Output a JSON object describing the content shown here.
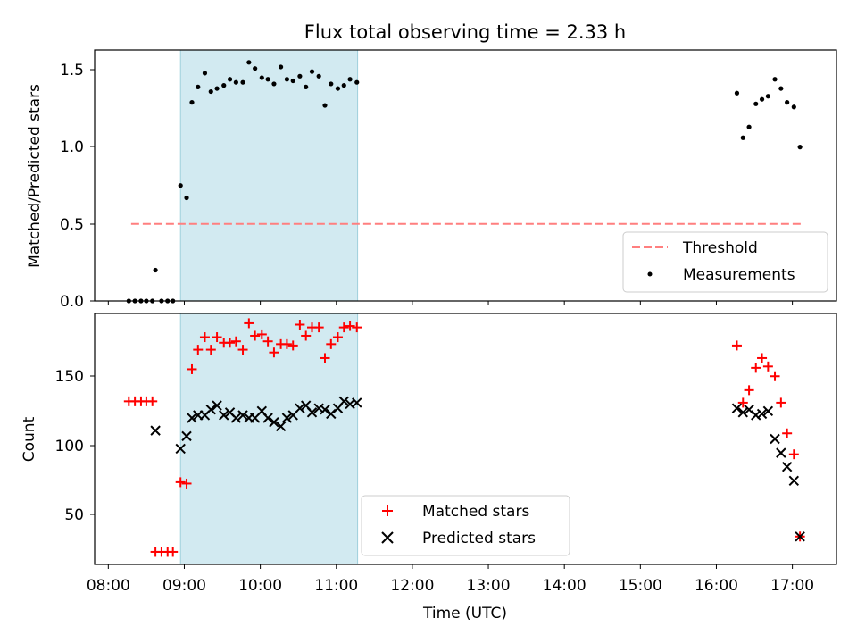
{
  "title": "Flux total observing time = 2.33 h",
  "xlabel": "Time (UTC)",
  "x_tick_labels": [
    "08:00",
    "09:00",
    "10:00",
    "11:00",
    "12:00",
    "13:00",
    "14:00",
    "15:00",
    "16:00",
    "17:00"
  ],
  "top": {
    "ylabel": "Matched/Predicted stars",
    "y_tick_labels": [
      "0.0",
      "0.5",
      "1.0",
      "1.5"
    ],
    "legend": {
      "threshold_label": "Threshold",
      "measurements_label": "Measurements"
    }
  },
  "bottom": {
    "ylabel": "Count",
    "y_tick_labels": [
      "50",
      "100",
      "150"
    ],
    "legend": {
      "matched_label": "Matched stars",
      "predicted_label": "Predicted stars"
    }
  },
  "colors": {
    "shade": "#add8e6",
    "threshold": "#ff7f7f",
    "measurements": "#000000",
    "matched": "#ff0000",
    "predicted": "#000000"
  },
  "chart_data": [
    {
      "type": "scatter",
      "title": "Flux total observing time = 2.33 h",
      "ylabel": "Matched/Predicted stars",
      "x_unit": "hours UTC",
      "xlim": [
        7.82,
        17.58
      ],
      "ylim": [
        0.0,
        1.63
      ],
      "grid": false,
      "legend_position": "lower right",
      "shaded_interval": [
        8.95,
        11.28
      ],
      "threshold": {
        "name": "Threshold",
        "y": 0.5,
        "x": [
          8.3,
          17.13
        ]
      },
      "series": [
        {
          "name": "Measurements",
          "x": [
            8.27,
            8.35,
            8.43,
            8.5,
            8.58,
            8.62,
            8.7,
            8.78,
            8.85,
            8.95,
            9.03,
            9.1,
            9.18,
            9.27,
            9.35,
            9.43,
            9.52,
            9.6,
            9.68,
            9.77,
            9.85,
            9.93,
            10.02,
            10.1,
            10.18,
            10.27,
            10.35,
            10.43,
            10.52,
            10.6,
            10.68,
            10.77,
            10.85,
            10.93,
            11.02,
            11.1,
            11.18,
            11.27,
            16.27,
            16.35,
            16.43,
            16.52,
            16.6,
            16.68,
            16.77,
            16.85,
            16.93,
            17.02,
            17.1
          ],
          "y": [
            0.0,
            0.0,
            0.0,
            0.0,
            0.0,
            0.2,
            0.0,
            0.0,
            0.0,
            0.75,
            0.67,
            1.29,
            1.39,
            1.48,
            1.36,
            1.38,
            1.4,
            1.44,
            1.42,
            1.42,
            1.55,
            1.51,
            1.45,
            1.44,
            1.41,
            1.52,
            1.44,
            1.43,
            1.46,
            1.39,
            1.49,
            1.46,
            1.27,
            1.41,
            1.38,
            1.4,
            1.44,
            1.42,
            1.35,
            1.06,
            1.13,
            1.28,
            1.31,
            1.33,
            1.44,
            1.38,
            1.29,
            1.26,
            1.0
          ]
        }
      ]
    },
    {
      "type": "scatter",
      "xlabel": "Time (UTC)",
      "ylabel": "Count",
      "x_unit": "hours UTC",
      "xlim": [
        7.82,
        17.58
      ],
      "ylim": [
        13,
        193
      ],
      "grid": false,
      "legend_position": "lower center",
      "shaded_interval": [
        8.95,
        11.28
      ],
      "series": [
        {
          "name": "Matched stars",
          "marker": "+",
          "x": [
            8.27,
            8.35,
            8.43,
            8.5,
            8.58,
            8.62,
            8.7,
            8.78,
            8.85,
            8.95,
            9.03,
            9.1,
            9.18,
            9.27,
            9.35,
            9.43,
            9.52,
            9.6,
            9.68,
            9.77,
            9.85,
            9.93,
            10.02,
            10.1,
            10.18,
            10.27,
            10.35,
            10.43,
            10.52,
            10.6,
            10.68,
            10.77,
            10.85,
            10.93,
            11.02,
            11.1,
            11.18,
            11.27,
            16.27,
            16.35,
            16.43,
            16.52,
            16.6,
            16.68,
            16.77,
            16.85,
            16.93,
            17.02,
            17.1
          ],
          "y": [
            130,
            130,
            130,
            130,
            130,
            22,
            22,
            22,
            22,
            72,
            71,
            153,
            167,
            176,
            167,
            176,
            172,
            172,
            173,
            167,
            186,
            177,
            178,
            173,
            165,
            171,
            171,
            170,
            185,
            177,
            183,
            183,
            161,
            171,
            176,
            183,
            184,
            183,
            170,
            129,
            138,
            154,
            161,
            155,
            148,
            129,
            107,
            92,
            33
          ]
        },
        {
          "name": "Predicted stars",
          "marker": "x",
          "x": [
            8.62,
            8.95,
            9.03,
            9.1,
            9.18,
            9.27,
            9.35,
            9.43,
            9.52,
            9.6,
            9.68,
            9.77,
            9.85,
            9.93,
            10.02,
            10.1,
            10.18,
            10.27,
            10.35,
            10.43,
            10.52,
            10.6,
            10.68,
            10.77,
            10.85,
            10.93,
            11.02,
            11.1,
            11.18,
            11.27,
            16.27,
            16.35,
            16.43,
            16.52,
            16.6,
            16.68,
            16.77,
            16.85,
            16.93,
            17.02,
            17.1
          ],
          "y": [
            109,
            96,
            105,
            118,
            120,
            120,
            124,
            127,
            120,
            122,
            118,
            120,
            118,
            118,
            123,
            118,
            115,
            112,
            118,
            120,
            125,
            127,
            122,
            125,
            124,
            121,
            125,
            130,
            128,
            129,
            125,
            122,
            124,
            120,
            121,
            123,
            103,
            93,
            83,
            73,
            33
          ]
        }
      ]
    }
  ]
}
